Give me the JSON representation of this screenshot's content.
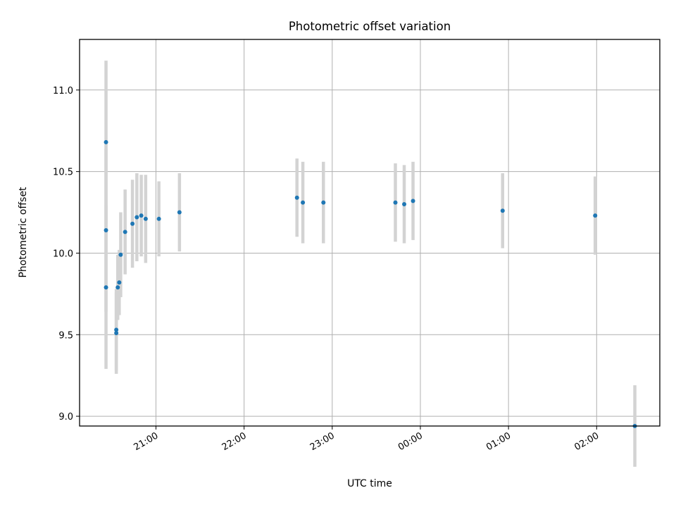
{
  "colors": {
    "point": "#1f77b4",
    "errorbar": "#d3d3d3",
    "grid": "#b0b0b0",
    "axes": "#000000",
    "background": "#ffffff"
  },
  "chart_data": {
    "type": "scatter",
    "title": "Photometric offset variation",
    "xlabel": "UTC time",
    "ylabel": "Photometric offset",
    "grid": true,
    "x_axis_kind": "time",
    "xlim": [
      "20:08",
      "02:43"
    ],
    "ylim": [
      8.94,
      11.31
    ],
    "xtick_labels": [
      "21:00",
      "22:00",
      "23:00",
      "00:00",
      "01:00",
      "02:00"
    ],
    "ytick_values": [
      9.0,
      9.5,
      10.0,
      10.5,
      11.0
    ],
    "ytick_labels": [
      "9.0",
      "9.5",
      "10.0",
      "10.5",
      "11.0"
    ],
    "series": [
      {
        "points": [
          {
            "x": "20:26",
            "y": 10.68,
            "err": 0.5
          },
          {
            "x": "20:26",
            "y": 10.14,
            "err": 0.5
          },
          {
            "x": "20:26",
            "y": 9.79,
            "err": 0.5
          },
          {
            "x": "20:33",
            "y": 9.53,
            "err": 0.25
          },
          {
            "x": "20:33",
            "y": 9.51,
            "err": 0.25
          },
          {
            "x": "20:34",
            "y": 9.79,
            "err": 0.2
          },
          {
            "x": "20:35",
            "y": 9.82,
            "err": 0.2
          },
          {
            "x": "20:36",
            "y": 9.99,
            "err": 0.26
          },
          {
            "x": "20:39",
            "y": 10.13,
            "err": 0.26
          },
          {
            "x": "20:44",
            "y": 10.18,
            "err": 0.27
          },
          {
            "x": "20:47",
            "y": 10.22,
            "err": 0.27
          },
          {
            "x": "20:50",
            "y": 10.23,
            "err": 0.25
          },
          {
            "x": "20:53",
            "y": 10.21,
            "err": 0.27
          },
          {
            "x": "21:02",
            "y": 10.21,
            "err": 0.23
          },
          {
            "x": "21:16",
            "y": 10.25,
            "err": 0.24
          },
          {
            "x": "22:36",
            "y": 10.34,
            "err": 0.24
          },
          {
            "x": "22:40",
            "y": 10.31,
            "err": 0.25
          },
          {
            "x": "22:54",
            "y": 10.31,
            "err": 0.25
          },
          {
            "x": "23:43",
            "y": 10.31,
            "err": 0.24
          },
          {
            "x": "23:49",
            "y": 10.3,
            "err": 0.24
          },
          {
            "x": "23:55",
            "y": 10.32,
            "err": 0.24
          },
          {
            "x": "00:56",
            "y": 10.26,
            "err": 0.23
          },
          {
            "x": "01:59",
            "y": 10.23,
            "err": 0.24
          },
          {
            "x": "02:26",
            "y": 8.94,
            "err": 0.25
          }
        ]
      }
    ]
  }
}
